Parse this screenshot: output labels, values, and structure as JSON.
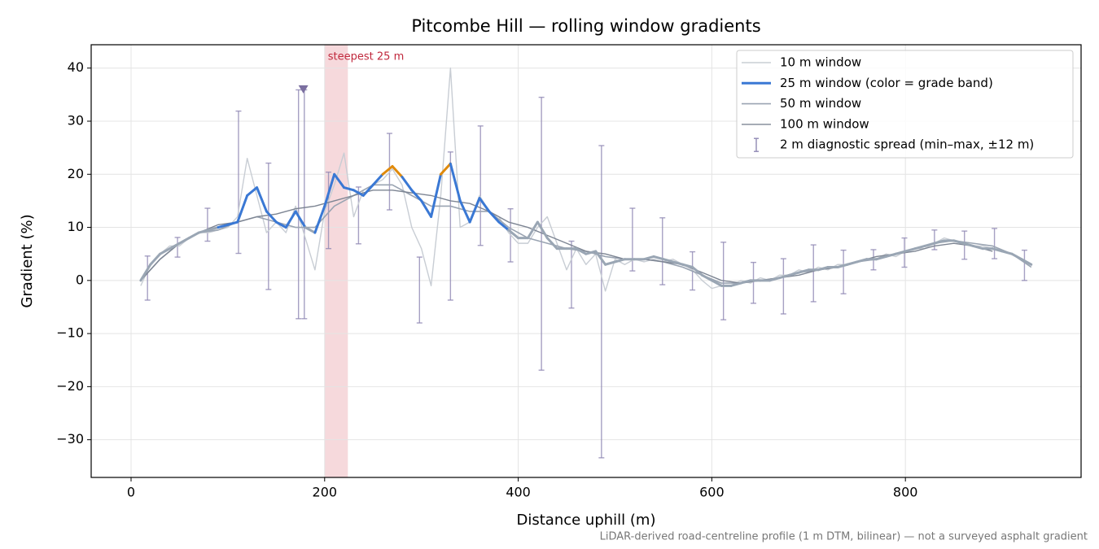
{
  "chart_data": {
    "type": "line",
    "title": "Pitcombe Hill — rolling window gradients",
    "x_label": "Distance uphill (m)",
    "y_label": "Gradient (%)",
    "footnote": "LiDAR-derived road-centreline profile (1 m DTM, bilinear) — not a surveyed asphalt gradient",
    "xlim": [
      -41.2,
      981.5
    ],
    "ylim": [
      -37.1,
      44.4
    ],
    "xticks": [
      0,
      200,
      400,
      600,
      800
    ],
    "yticks": [
      {
        "value": -30,
        "label": "−30"
      },
      {
        "value": -20,
        "label": "−20"
      },
      {
        "value": -10,
        "label": "−10"
      },
      0,
      10,
      20,
      30,
      40
    ],
    "grid": true,
    "legend": "upper right",
    "highlight": {
      "label": "steepest 25 m",
      "range": [
        200,
        224
      ],
      "color": "#e8a0a8",
      "text_color": "#c0283c"
    },
    "marker": {
      "x": 178,
      "y": 36,
      "color": "#7b6fa0"
    },
    "series": [
      {
        "name": "10 m window",
        "color": "#c8cdd4",
        "width": 1.4,
        "x": [
          10,
          20,
          30,
          40,
          50,
          60,
          70,
          80,
          90,
          100,
          110,
          120,
          130,
          140,
          150,
          160,
          170,
          180,
          190,
          200,
          210,
          220,
          230,
          240,
          250,
          260,
          270,
          280,
          290,
          300,
          310,
          320,
          330,
          340,
          350,
          360,
          370,
          380,
          390,
          400,
          410,
          420,
          430,
          440,
          450,
          460,
          470,
          480,
          490,
          500,
          510,
          520,
          530,
          540,
          550,
          560,
          570,
          580,
          590,
          600,
          610,
          620,
          630,
          640,
          650,
          660,
          670,
          680,
          690,
          700,
          710,
          720,
          730,
          740,
          750,
          760,
          770,
          780,
          790,
          800,
          810,
          820,
          830,
          840,
          850,
          860,
          870,
          880,
          890,
          900,
          910,
          920,
          930
        ],
        "values": [
          -1,
          3,
          5,
          6.5,
          6.5,
          8,
          9,
          9,
          9.5,
          10,
          12,
          23,
          16,
          9,
          11,
          9,
          14,
          8,
          2,
          13,
          18,
          24,
          12,
          17,
          18,
          19,
          21,
          18,
          10,
          6,
          -1,
          16,
          40,
          10,
          11,
          16,
          13,
          12,
          9,
          7,
          7,
          10,
          12,
          7,
          2,
          6,
          3,
          5,
          -2,
          4,
          3,
          4,
          3.5,
          4,
          3.5,
          4,
          3,
          2,
          0,
          -1.5,
          -1,
          -1,
          0,
          -0.5,
          0.5,
          0,
          1,
          1,
          2,
          1.5,
          2.5,
          2,
          3,
          3,
          3.5,
          4,
          4,
          5,
          4.5,
          5.5,
          6,
          6,
          7,
          8,
          7.5,
          7,
          6.5,
          6.5,
          6,
          5.5,
          5,
          4,
          2.5
        ]
      },
      {
        "name": "25 m window (color = grade band)",
        "width": 3,
        "band_edges": [
          10,
          20
        ],
        "band_colors": [
          "#9aa6b4",
          "#3a78d4",
          "#e08a0b"
        ],
        "x": [
          10,
          20,
          30,
          40,
          50,
          60,
          70,
          80,
          90,
          100,
          110,
          120,
          130,
          140,
          150,
          160,
          170,
          180,
          190,
          200,
          210,
          220,
          230,
          240,
          250,
          260,
          270,
          280,
          290,
          300,
          310,
          320,
          330,
          340,
          350,
          360,
          370,
          380,
          390,
          400,
          410,
          420,
          430,
          440,
          450,
          460,
          470,
          480,
          490,
          500,
          510,
          520,
          530,
          540,
          550,
          560,
          570,
          580,
          590,
          600,
          610,
          620,
          630,
          640,
          650,
          660,
          670,
          680,
          690,
          700,
          710,
          720,
          730,
          740,
          750,
          760,
          770,
          780,
          790,
          800,
          810,
          820,
          830,
          840,
          850,
          860,
          870,
          880,
          890,
          900,
          910,
          920,
          930
        ],
        "values": [
          0,
          3,
          5,
          6,
          7,
          8,
          9,
          9.5,
          10,
          10.5,
          11,
          16,
          17.5,
          13,
          11,
          10,
          13,
          10,
          9,
          14,
          20,
          17.5,
          17,
          16,
          18,
          20,
          21.5,
          19.5,
          17,
          15,
          12,
          20,
          22,
          15,
          11,
          15.5,
          13,
          11,
          9.5,
          8,
          8,
          11,
          8,
          6,
          6,
          6,
          5,
          5.5,
          3,
          3.5,
          4,
          4,
          4,
          4.5,
          4,
          3.5,
          3,
          2.5,
          1,
          0,
          -1,
          -1,
          -0.5,
          0,
          0,
          0,
          0.5,
          1,
          1.5,
          2,
          2,
          2.5,
          2.5,
          3,
          3.5,
          4,
          4,
          4.5,
          5,
          5.5,
          6,
          6.5,
          7,
          7.5,
          7.5,
          7,
          6.5,
          6,
          6,
          5.5,
          5,
          4,
          3
        ]
      },
      {
        "name": "50 m window",
        "color": "#9aa4b2",
        "width": 1.6,
        "x": [
          10,
          30,
          50,
          70,
          90,
          110,
          130,
          150,
          170,
          190,
          210,
          230,
          250,
          270,
          290,
          310,
          330,
          350,
          370,
          390,
          410,
          430,
          450,
          470,
          490,
          510,
          530,
          550,
          570,
          590,
          610,
          630,
          650,
          670,
          690,
          710,
          730,
          750,
          770,
          790,
          810,
          830,
          850,
          870,
          890,
          910,
          930
        ],
        "values": [
          0,
          4,
          7,
          9,
          9.5,
          11,
          12,
          11,
          10,
          10,
          14,
          16,
          18,
          18,
          16,
          14,
          14,
          13,
          13,
          10,
          8,
          7,
          6,
          5.5,
          4.5,
          4,
          4,
          3.5,
          2.5,
          1,
          -0.5,
          -0.5,
          0,
          0.5,
          1.5,
          2,
          2.5,
          3.5,
          4,
          5,
          6,
          7,
          7.5,
          7,
          6.5,
          5,
          2.5
        ]
      },
      {
        "name": "100 m window",
        "color": "#7d8593",
        "width": 1.4,
        "x": [
          10,
          30,
          50,
          70,
          90,
          110,
          130,
          150,
          170,
          190,
          210,
          230,
          250,
          270,
          290,
          310,
          330,
          350,
          370,
          390,
          410,
          430,
          450,
          470,
          490,
          510,
          530,
          550,
          570,
          590,
          610,
          630,
          650,
          670,
          690,
          710,
          730,
          750,
          770,
          790,
          810,
          830,
          850,
          870,
          890
        ],
        "values": [
          0,
          4,
          7,
          9,
          10.5,
          11,
          12,
          12.5,
          13.5,
          14,
          15,
          16,
          17,
          17,
          16.5,
          16,
          15,
          14.5,
          13,
          11,
          10,
          8.5,
          7,
          5.5,
          5,
          4,
          4,
          3.5,
          3,
          1.5,
          0,
          -0.5,
          0,
          0.5,
          1,
          2,
          2.5,
          3.5,
          4.5,
          5,
          5.5,
          6.5,
          7,
          6.5,
          5.5
        ]
      }
    ],
    "error_bars": {
      "name": "2 m diagnostic spread (min–max, ±12 m)",
      "color": "#9088b4",
      "x": [
        17,
        48,
        79,
        111,
        142,
        173,
        179,
        204,
        235,
        267,
        298,
        330,
        361,
        392,
        424,
        455,
        486,
        518,
        549,
        580,
        612,
        643,
        674,
        705,
        736,
        767,
        799,
        830,
        861,
        892,
        923
      ],
      "low": [
        -3.7,
        4.4,
        7.4,
        5.1,
        -1.7,
        -7.2,
        -7.2,
        6.0,
        6.9,
        13.3,
        -8.0,
        -3.7,
        6.6,
        3.5,
        -16.9,
        -5.2,
        -33.4,
        1.8,
        -0.8,
        -1.8,
        -7.4,
        -4.3,
        -6.3,
        -4.0,
        -2.5,
        2.0,
        2.5,
        5.8,
        4.0,
        4.1,
        0.0
      ],
      "high": [
        4.6,
        8.1,
        13.6,
        31.9,
        22.1,
        35.9,
        35.9,
        20.4,
        17.6,
        27.7,
        4.4,
        24.2,
        29.1,
        13.5,
        34.5,
        7.4,
        25.4,
        13.6,
        11.8,
        5.4,
        7.2,
        3.4,
        4.1,
        6.7,
        5.7,
        5.8,
        8.0,
        9.5,
        9.3,
        9.8,
        5.7
      ]
    }
  }
}
